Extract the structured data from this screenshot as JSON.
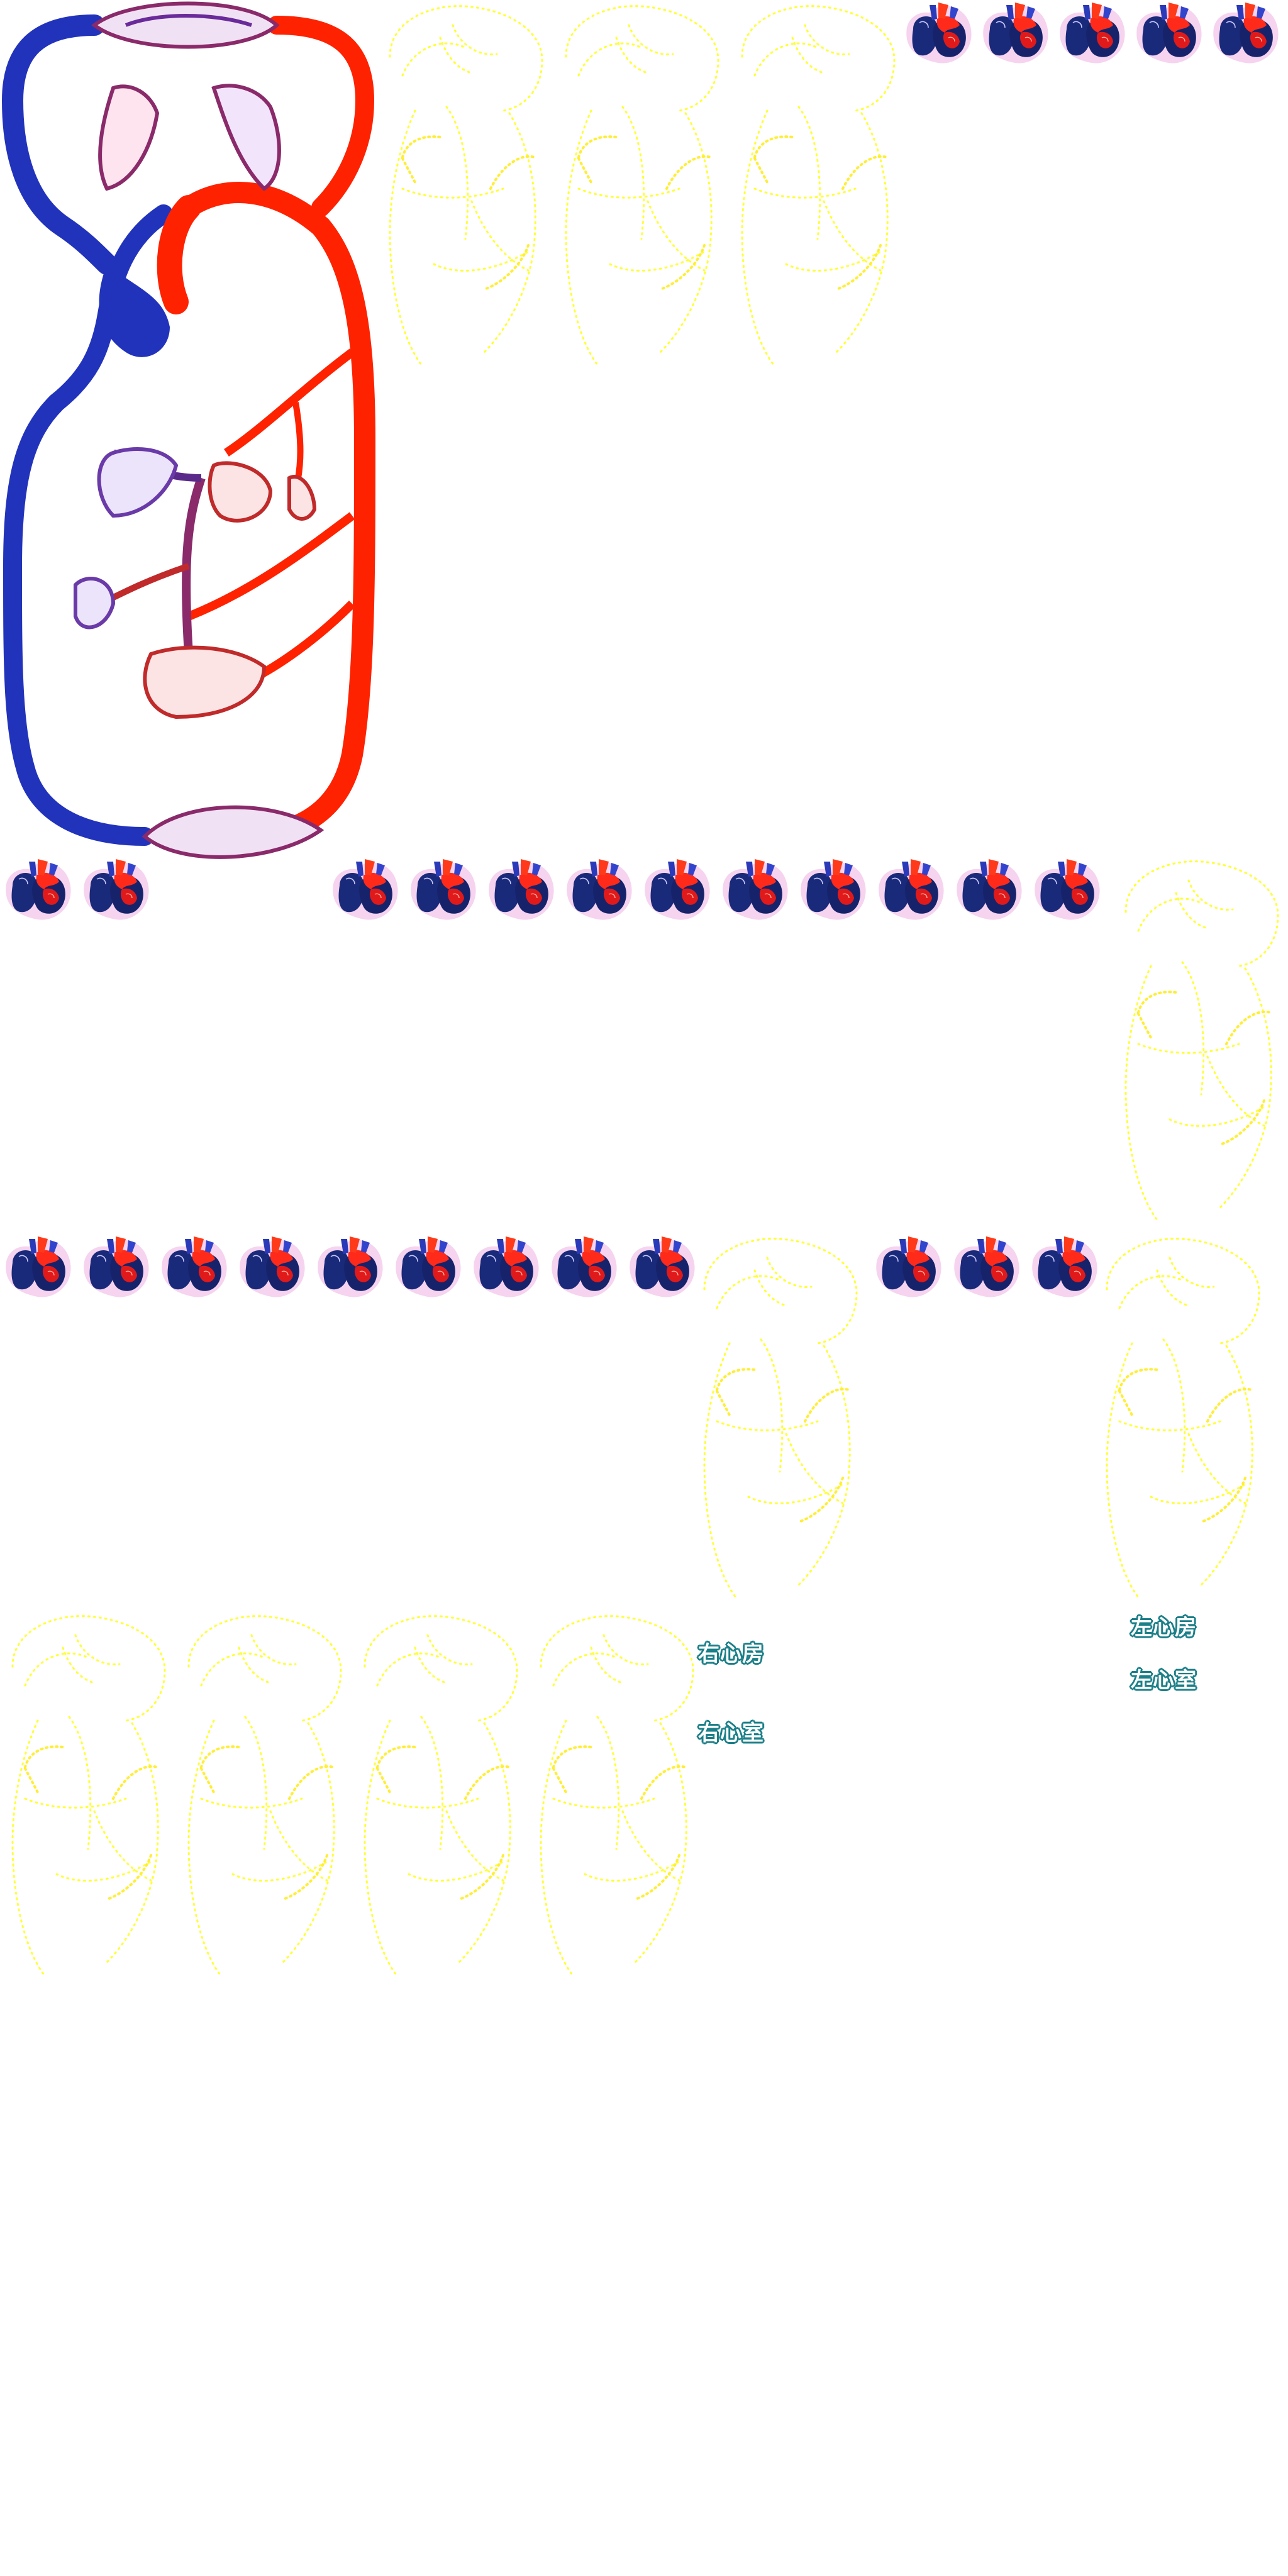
{
  "sprite_sheet": {
    "background": "#ffffff",
    "artery_color": "#ff2200",
    "vein_color": "#2233bb",
    "capillary_mix_color": "#8a2a6a",
    "outline_trace_color": "#ffff33",
    "label_fill_color": "#ffffff",
    "label_outline_color": "#1b7f88",
    "icons": {
      "circulation": "circulation-diagram-icon",
      "heart": "heart-icon",
      "outline": "heart-outline-trace-icon"
    }
  },
  "labels": {
    "right_atrium": "右心房",
    "right_ventricle": "右心室",
    "left_atrium": "左心房",
    "left_ventricle": "左心室"
  }
}
